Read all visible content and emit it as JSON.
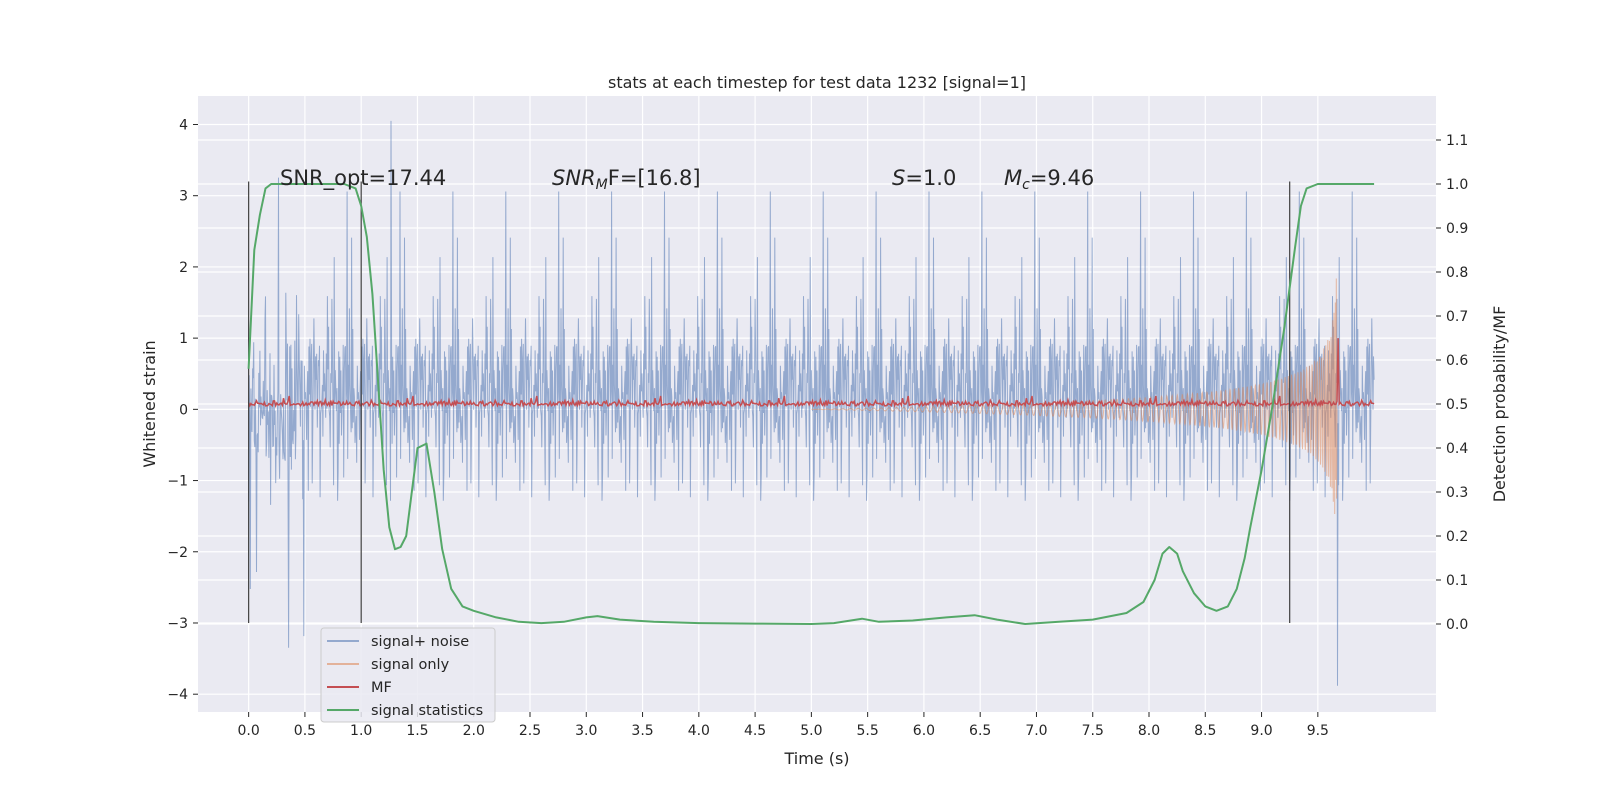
{
  "chart_data": {
    "type": "line",
    "title": "stats at each timestep for test data 1232 [signal=1]",
    "xlabel": "Time (s)",
    "ylabel": "Whitened strain",
    "y2label": "Detection probability/MF",
    "xlim": [
      -0.45,
      10.55
    ],
    "ylim": [
      -4.25,
      4.4
    ],
    "y2lim": [
      -0.2,
      1.2
    ],
    "x_ticks": [
      "0.0",
      "0.5",
      "1.0",
      "1.5",
      "2.0",
      "2.5",
      "3.0",
      "3.5",
      "4.0",
      "4.5",
      "5.0",
      "5.5",
      "6.0",
      "6.5",
      "7.0",
      "7.5",
      "8.0",
      "8.5",
      "9.0",
      "9.5"
    ],
    "y_ticks": [
      "4",
      "3",
      "2",
      "1",
      "0",
      "−1",
      "−2",
      "−3",
      "−4"
    ],
    "y2_ticks": [
      "1.1",
      "1.0",
      "0.9",
      "0.8",
      "0.7",
      "0.6",
      "0.5",
      "0.4",
      "0.3",
      "0.2",
      "0.1",
      "0.0"
    ],
    "grid": true,
    "legend_position": "lower-left",
    "legend": [
      "signal+ noise",
      "signal only",
      "MF",
      "signal statistics"
    ],
    "colors": {
      "signal_noise": "#4c72b0",
      "signal_only": "#dd8452",
      "mf": "#c44e52",
      "statistics": "#55a868",
      "axes_bg": "#eaeaf2",
      "vlines": "#404040"
    },
    "annotations": {
      "snr_opt": "SNR_opt=17.44",
      "snr_mf_name": "SNR",
      "snr_mf_sub": "M",
      "snr_mf_tail": "F=[16.8]",
      "s_name": "S",
      "s_value": "=1.0",
      "mc_name": "M",
      "mc_sub": "c",
      "mc_value": "=9.46"
    },
    "vertical_lines_x": [
      0.0,
      1.0,
      9.25
    ],
    "vertical_lines_span": [
      -3.0,
      3.2
    ],
    "signal_noise": {
      "x_range": [
        0.0,
        10.0
      ],
      "typical_band": [
        -1.5,
        1.5
      ],
      "max": 4.05,
      "min": -3.88
    },
    "signal_only": {
      "x_range": [
        5.0,
        9.68
      ],
      "envelope_end": 1.7,
      "merger_time": 9.68
    },
    "mf": {
      "x_range": [
        0.0,
        10.0
      ],
      "baseline": 0.05,
      "peak_x": 9.68,
      "peak_y": 1.0
    },
    "statistics": {
      "points": [
        [
          0.0,
          0.58
        ],
        [
          0.05,
          0.85
        ],
        [
          0.1,
          0.93
        ],
        [
          0.15,
          0.99
        ],
        [
          0.2,
          1.0
        ],
        [
          0.3,
          1.0
        ],
        [
          0.5,
          1.0
        ],
        [
          0.7,
          1.0
        ],
        [
          0.85,
          1.0
        ],
        [
          0.95,
          0.99
        ],
        [
          1.0,
          0.95
        ],
        [
          1.05,
          0.88
        ],
        [
          1.1,
          0.75
        ],
        [
          1.15,
          0.55
        ],
        [
          1.2,
          0.35
        ],
        [
          1.25,
          0.22
        ],
        [
          1.3,
          0.17
        ],
        [
          1.35,
          0.175
        ],
        [
          1.4,
          0.2
        ],
        [
          1.45,
          0.3
        ],
        [
          1.5,
          0.4
        ],
        [
          1.58,
          0.41
        ],
        [
          1.65,
          0.3
        ],
        [
          1.72,
          0.17
        ],
        [
          1.8,
          0.08
        ],
        [
          1.9,
          0.04
        ],
        [
          2.0,
          0.03
        ],
        [
          2.2,
          0.015
        ],
        [
          2.4,
          0.005
        ],
        [
          2.6,
          0.002
        ],
        [
          2.8,
          0.005
        ],
        [
          3.0,
          0.015
        ],
        [
          3.1,
          0.018
        ],
        [
          3.3,
          0.01
        ],
        [
          3.6,
          0.005
        ],
        [
          4.0,
          0.002
        ],
        [
          4.5,
          0.001
        ],
        [
          5.0,
          0.0
        ],
        [
          5.2,
          0.002
        ],
        [
          5.45,
          0.012
        ],
        [
          5.6,
          0.005
        ],
        [
          5.9,
          0.008
        ],
        [
          6.2,
          0.015
        ],
        [
          6.45,
          0.02
        ],
        [
          6.65,
          0.01
        ],
        [
          6.9,
          0.0
        ],
        [
          7.2,
          0.005
        ],
        [
          7.5,
          0.01
        ],
        [
          7.8,
          0.025
        ],
        [
          7.95,
          0.05
        ],
        [
          8.05,
          0.1
        ],
        [
          8.12,
          0.16
        ],
        [
          8.18,
          0.175
        ],
        [
          8.25,
          0.16
        ],
        [
          8.3,
          0.12
        ],
        [
          8.4,
          0.07
        ],
        [
          8.5,
          0.04
        ],
        [
          8.6,
          0.03
        ],
        [
          8.7,
          0.04
        ],
        [
          8.78,
          0.08
        ],
        [
          8.85,
          0.15
        ],
        [
          8.9,
          0.22
        ],
        [
          9.0,
          0.35
        ],
        [
          9.1,
          0.5
        ],
        [
          9.2,
          0.67
        ],
        [
          9.3,
          0.86
        ],
        [
          9.35,
          0.95
        ],
        [
          9.4,
          0.99
        ],
        [
          9.5,
          1.0
        ],
        [
          10.0,
          1.0
        ]
      ]
    }
  }
}
